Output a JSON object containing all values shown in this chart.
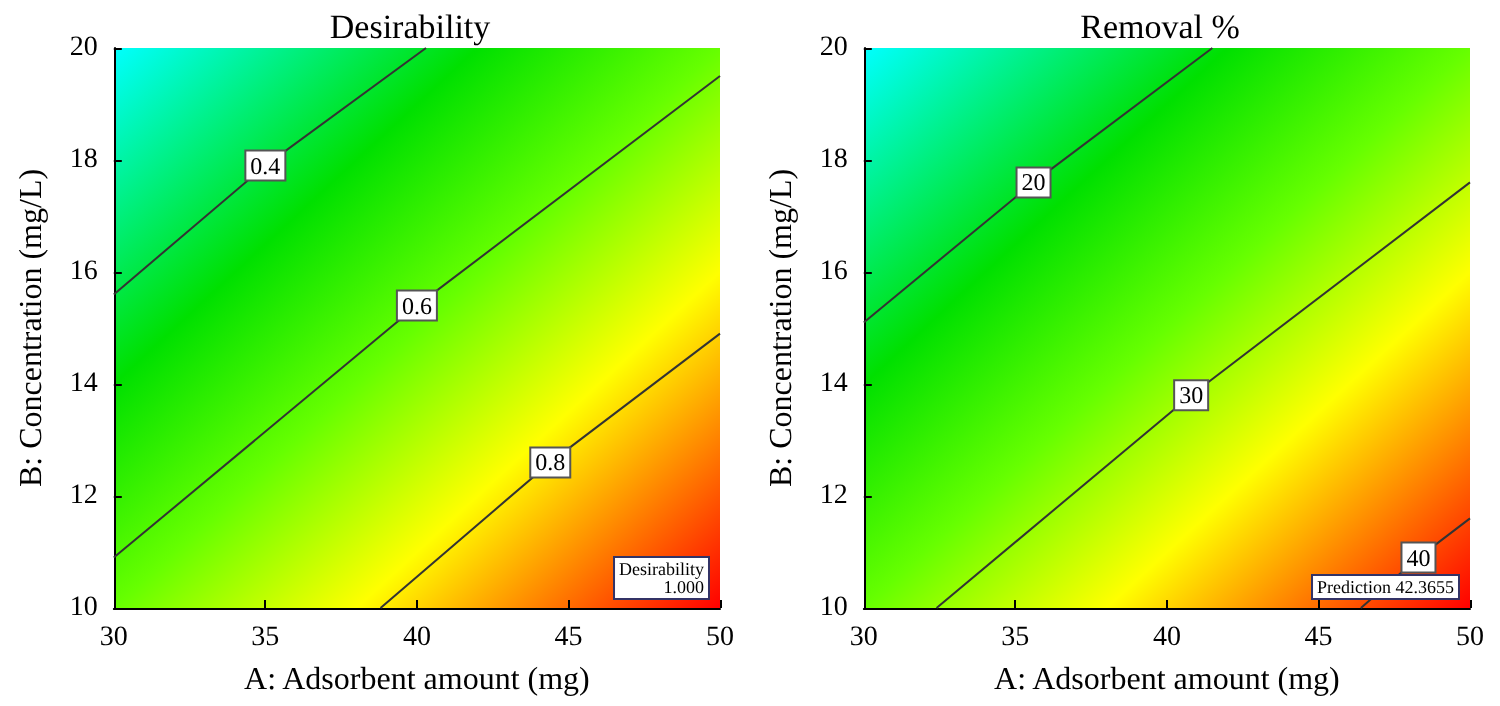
{
  "chart_data": [
    {
      "type": "line",
      "title": "Desirability",
      "xlabel": "A: Adsorbent amount (mg)",
      "ylabel": "B: Concentration (mg/L)",
      "xlim": [
        30,
        50
      ],
      "ylim": [
        10,
        20
      ],
      "xticks": [
        30,
        35,
        40,
        45,
        50
      ],
      "yticks": [
        10,
        12,
        14,
        16,
        18,
        20
      ],
      "series": [
        {
          "name": "0.4",
          "color": "#333333",
          "x": [
            30,
            35,
            40.3
          ],
          "values": [
            15.6,
            17.9,
            20
          ]
        },
        {
          "name": "0.6",
          "color": "#333333",
          "x": [
            30,
            40,
            50
          ],
          "values": [
            10.9,
            15.4,
            19.5
          ]
        },
        {
          "name": "0.8",
          "color": "#333333",
          "x": [
            38.8,
            44.4,
            50
          ],
          "values": [
            10,
            12.6,
            14.9
          ]
        }
      ],
      "annotations": [
        "Desirability\n1.000"
      ]
    },
    {
      "type": "line",
      "title": "Removal %",
      "xlabel": "A: Adsorbent amount (mg)",
      "ylabel": "B: Concentration (mg/L)",
      "xlim": [
        30,
        50
      ],
      "ylim": [
        10,
        20
      ],
      "xticks": [
        30,
        35,
        40,
        45,
        50
      ],
      "yticks": [
        10,
        12,
        14,
        16,
        18,
        20
      ],
      "series": [
        {
          "name": "20",
          "color": "#333333",
          "x": [
            30,
            35.6,
            41.5
          ],
          "values": [
            15.1,
            17.6,
            20
          ]
        },
        {
          "name": "30",
          "color": "#333333",
          "x": [
            32.4,
            40.8,
            50
          ],
          "values": [
            10,
            13.8,
            17.6
          ]
        },
        {
          "name": "40",
          "color": "#333333",
          "x": [
            46.4,
            48.3,
            50
          ],
          "values": [
            10,
            10.9,
            11.6
          ]
        }
      ],
      "annotations": [
        "Prediction 42.3655"
      ]
    }
  ]
}
